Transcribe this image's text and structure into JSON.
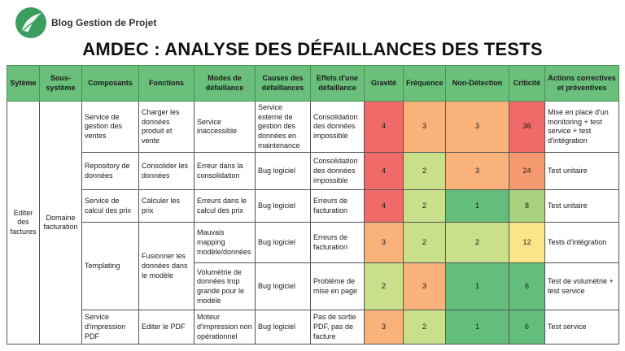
{
  "brand": {
    "name": "Blog Gestion de Projet",
    "logo_color": "#3a9e5f"
  },
  "title": "AMDEC : ANALYSE DES DÉFAILLANCES DES TESTS",
  "colors": {
    "header_bg": "#6abf7a",
    "red": "#f06a6a",
    "orange": "#f8b27a",
    "light_orange": "#f6c98a",
    "yellow": "#fde68a",
    "light_green": "#c9df8a",
    "green": "#63be7b"
  },
  "table": {
    "headers": [
      "Sytème",
      "Sous-système",
      "Composants",
      "Fonctions",
      "Modes de défaillance",
      "Causes des défaillances",
      "Effets d'une défaillance",
      "Gravité",
      "Fréquence",
      "Non-Détection",
      "Criticité",
      "Actions correctives et préventives"
    ],
    "system": "Editer des factures",
    "subsystem": "Domaine facturation",
    "rows": [
      {
        "component": "Service de gestion des ventes",
        "function": "Charger les données produit et vente",
        "mode": "Service inaccessible",
        "cause": "Service externe de gestion des données en maintenance",
        "effect": "Consolidation des données impossible",
        "gravity": "4",
        "frequency": "3",
        "detection": "3",
        "criticity": "36",
        "gravity_color": "#f06a6a",
        "frequency_color": "#f8b27a",
        "detection_color": "#f8b27a",
        "criticity_color": "#f06a6a",
        "action": "Mise en place d'un monitoring + test service + test d'intégration"
      },
      {
        "component": "Repository de données",
        "function": "Consolider les données",
        "mode": "Erreur dans la consolidation",
        "cause": "Bug logiciel",
        "effect": "Consolidation des données impossible",
        "gravity": "4",
        "frequency": "2",
        "detection": "3",
        "criticity": "24",
        "gravity_color": "#f06a6a",
        "frequency_color": "#c9df8a",
        "detection_color": "#f8b27a",
        "criticity_color": "#f59a70",
        "action": "Test unitaire"
      },
      {
        "component": "Service de calcul des prix",
        "function": "Calculer les prix",
        "mode": "Erreurs dans le calcul des prix",
        "cause": "Bug logiciel",
        "effect": "Erreurs de facturation",
        "gravity": "4",
        "frequency": "2",
        "detection": "1",
        "criticity": "8",
        "gravity_color": "#f06a6a",
        "frequency_color": "#c9df8a",
        "detection_color": "#63be7b",
        "criticity_color": "#a9d27f",
        "action": "Test unitaire"
      },
      {
        "component": "Templating",
        "function": "Fusionner les données dans le modèle",
        "mode": "Mauvais mapping modèle/données",
        "cause": "Bug logiciel",
        "effect": "Erreurs de facturation",
        "gravity": "3",
        "frequency": "2",
        "detection": "2",
        "criticity": "12",
        "gravity_color": "#f8b27a",
        "frequency_color": "#c9df8a",
        "detection_color": "#c9df8a",
        "criticity_color": "#fde68a",
        "action": "Tests d'intégration"
      },
      {
        "mode": "Volumétrie de données trop grande pour le modèle",
        "cause": "Bug logiciel",
        "effect": "Problème de mise en page",
        "gravity": "2",
        "frequency": "3",
        "detection": "1",
        "criticity": "6",
        "gravity_color": "#c9df8a",
        "frequency_color": "#f8b27a",
        "detection_color": "#63be7b",
        "criticity_color": "#63be7b",
        "action": "Test de volumétrie + test service"
      },
      {
        "component": "Service d'impression PDF",
        "function": "Editer le PDF",
        "mode": "Moteur d'impression non opérationnel",
        "cause": "Bug logiciel",
        "effect": "Pas de sortie PDF, pas de facture",
        "gravity": "3",
        "frequency": "2",
        "detection": "1",
        "criticity": "6",
        "gravity_color": "#f8b27a",
        "frequency_color": "#c9df8a",
        "detection_color": "#63be7b",
        "criticity_color": "#63be7b",
        "action": "Test service"
      }
    ]
  }
}
